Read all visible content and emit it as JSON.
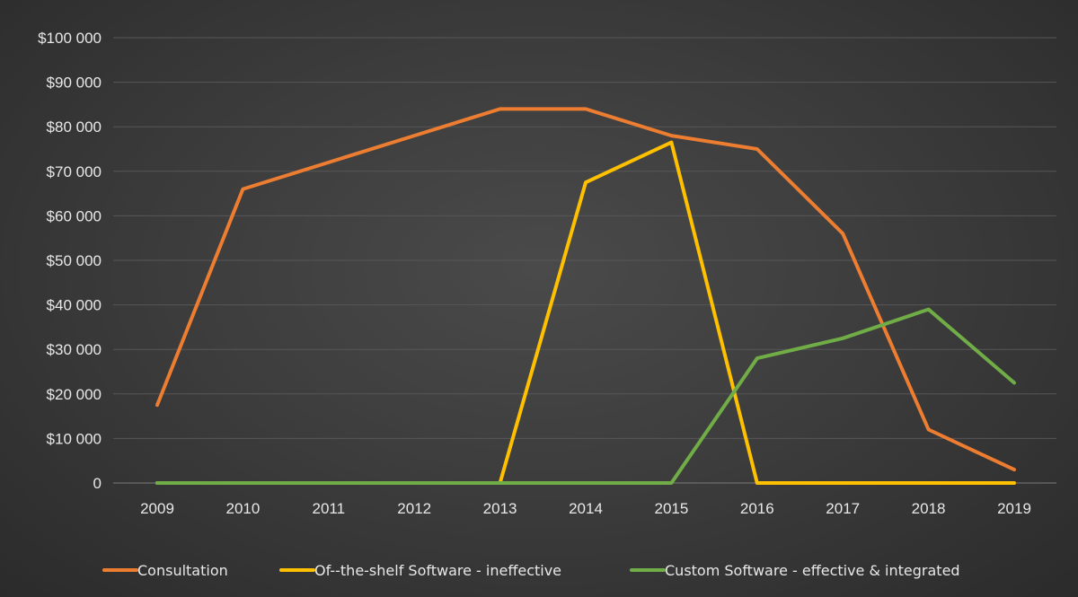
{
  "chart_data": {
    "type": "line",
    "title": "",
    "xlabel": "",
    "ylabel": "",
    "categories": [
      "2009",
      "2010",
      "2011",
      "2012",
      "2013",
      "2014",
      "2015",
      "2016",
      "2017",
      "2018",
      "2019"
    ],
    "ylim": [
      0,
      100000
    ],
    "y_ticks": [
      0,
      10000,
      20000,
      30000,
      40000,
      50000,
      60000,
      70000,
      80000,
      90000,
      100000
    ],
    "y_tick_labels": [
      "0",
      "$10 000",
      "$20 000",
      "$30 000",
      "$40 000",
      "$50 000",
      "$60 000",
      "$70 000",
      "$80 000",
      "$90 000",
      "$100 000"
    ],
    "grid": true,
    "legend_position": "bottom",
    "series": [
      {
        "name": "Consultation",
        "color": "#ed7d31",
        "values": [
          17500,
          66000,
          72000,
          78000,
          84000,
          84000,
          78000,
          75000,
          56000,
          12000,
          3000
        ]
      },
      {
        "name": "Of--the-shelf Software - ineffective",
        "color": "#ffc000",
        "values": [
          0,
          0,
          0,
          0,
          0,
          67500,
          76500,
          0,
          0,
          0,
          0
        ]
      },
      {
        "name": "Custom Software - effective & integrated",
        "color": "#70ad47",
        "values": [
          0,
          0,
          0,
          0,
          0,
          0,
          0,
          28000,
          32500,
          39000,
          22500
        ]
      }
    ]
  }
}
